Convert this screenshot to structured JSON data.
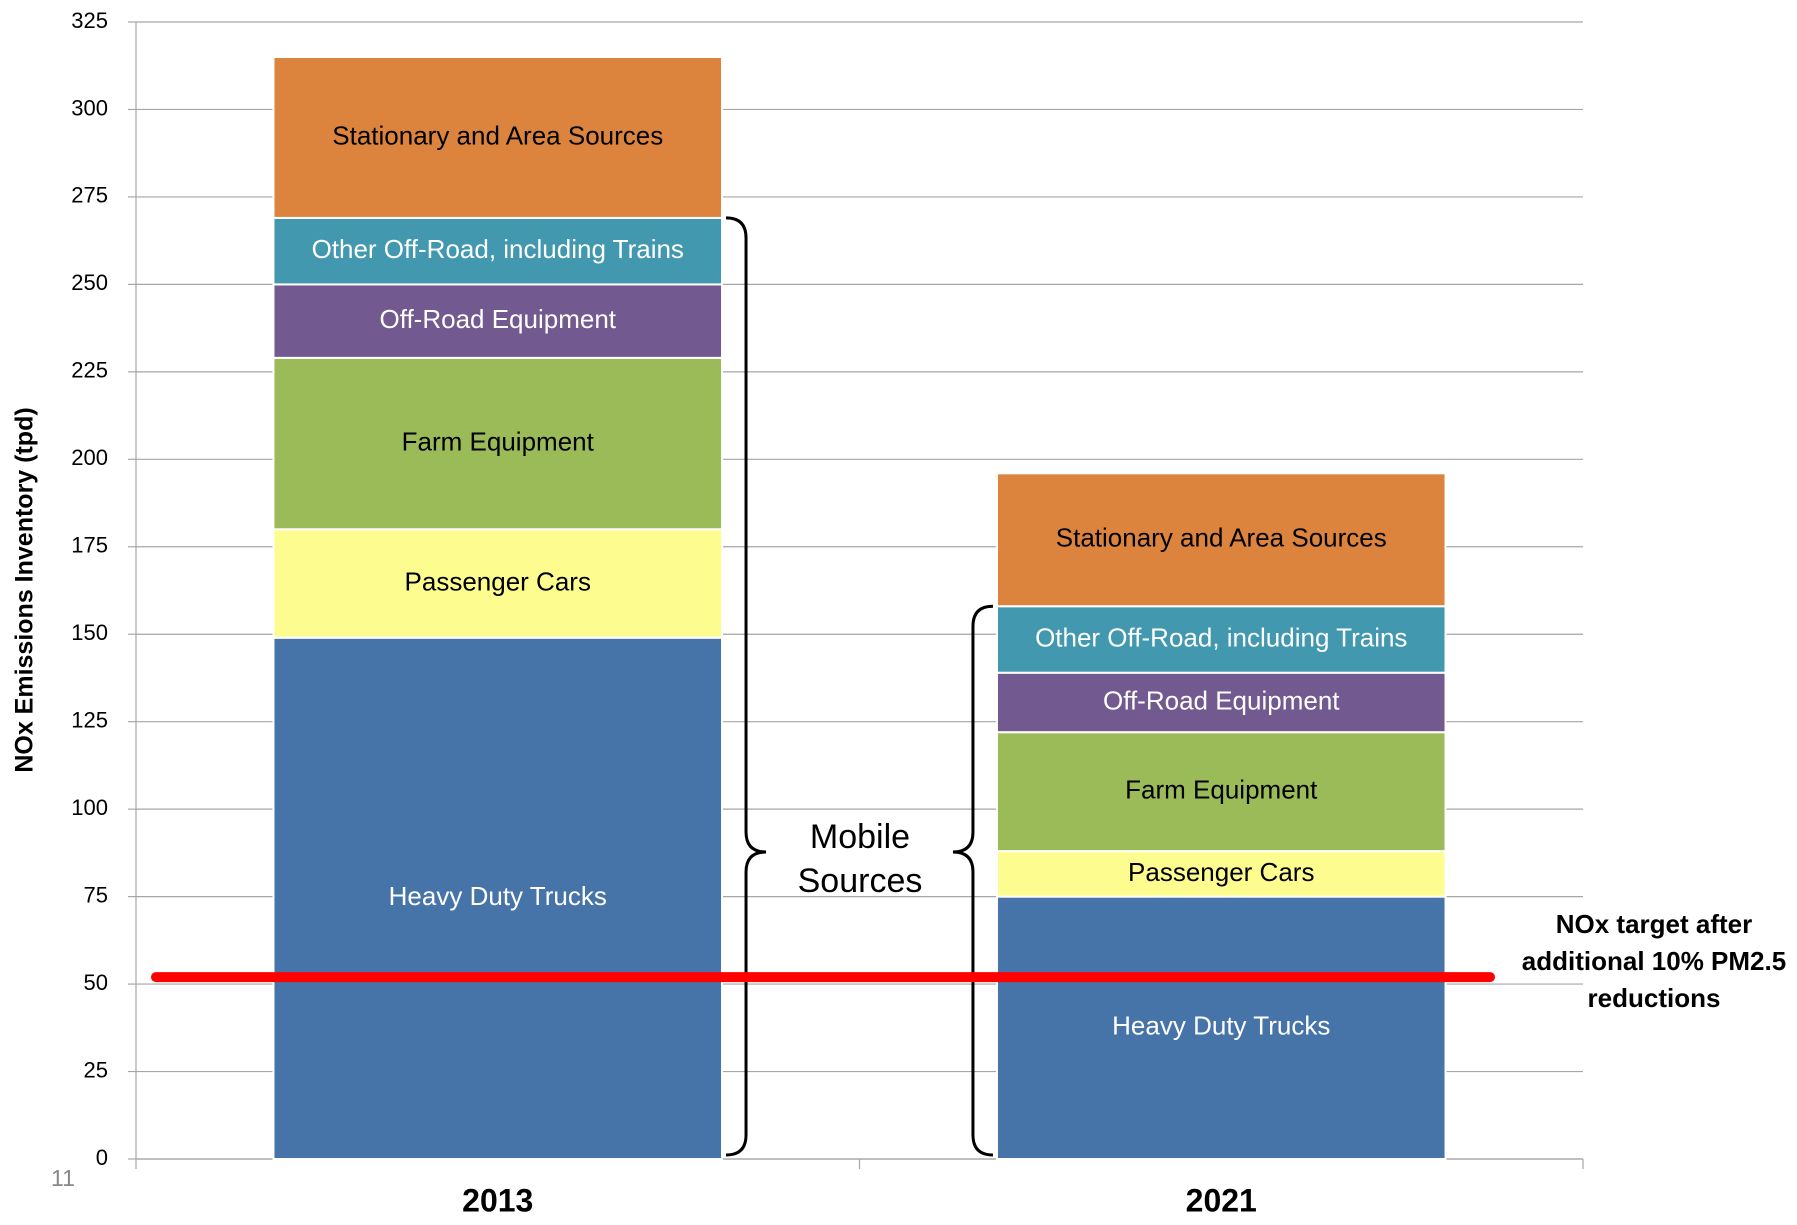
{
  "slide_number": "11",
  "chart_data": {
    "type": "bar",
    "stacked": true,
    "y_label": "NOx Emissions Inventory (tpd)",
    "categories": [
      "2013",
      "2021"
    ],
    "series": [
      {
        "name": "Heavy Duty Trucks",
        "color": "#4674a8",
        "label_color": "#ffffff",
        "values": [
          149,
          75
        ]
      },
      {
        "name": "Passenger Cars",
        "color": "#fdfd8f",
        "label_color": "#000000",
        "values": [
          31,
          13
        ]
      },
      {
        "name": "Farm Equipment",
        "color": "#9bbb59",
        "label_color": "#000000",
        "values": [
          49,
          34
        ]
      },
      {
        "name": "Off-Road Equipment",
        "color": "#72598f",
        "label_color": "#ffffff",
        "values": [
          21,
          17
        ]
      },
      {
        "name": "Other Off-Road, including Trains",
        "color": "#4198af",
        "label_color": "#ffffff",
        "values": [
          19,
          19
        ]
      },
      {
        "name": "Stationary and Area Sources",
        "color": "#dc843e",
        "label_color": "#000000",
        "values": [
          46,
          38
        ]
      }
    ],
    "ylim": [
      0,
      325
    ],
    "yticks": [
      0,
      25,
      50,
      75,
      100,
      125,
      150,
      175,
      200,
      225,
      250,
      275,
      300,
      325
    ],
    "grid": true,
    "brace_label": "Mobile Sources",
    "target": {
      "value": 52,
      "label": "NOx target after additional 10% PM2.5 reductions",
      "color": "#ff0000"
    }
  }
}
